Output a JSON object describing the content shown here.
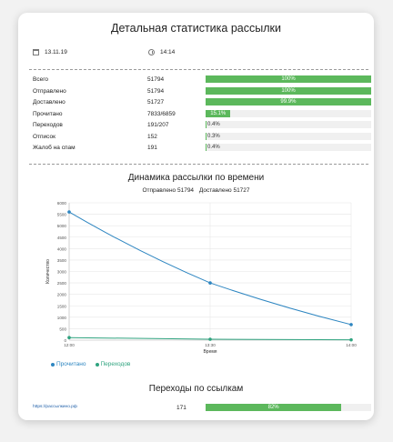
{
  "title": "Детальная статистика рассылки",
  "meta": {
    "date": "13.11.19",
    "date_icon": "calendar-icon",
    "time": "14:14",
    "time_icon": "clock-icon"
  },
  "stats": [
    {
      "label": "Всего",
      "value": "51794",
      "percent": 100,
      "percent_label": "100%"
    },
    {
      "label": "Отправлено",
      "value": "51794",
      "percent": 100,
      "percent_label": "100%"
    },
    {
      "label": "Доставлено",
      "value": "51727",
      "percent": 99.9,
      "percent_label": "99.9%"
    },
    {
      "label": "Прочитано",
      "value": "7833/6859",
      "percent": 15.1,
      "percent_label": "15.1%"
    },
    {
      "label": "Переходов",
      "value": "191/207",
      "percent": 0.4,
      "percent_label": "0.4%"
    },
    {
      "label": "Отписок",
      "value": "152",
      "percent": 0.3,
      "percent_label": "0.3%"
    },
    {
      "label": "Жалоб на спам",
      "value": "191",
      "percent": 0.4,
      "percent_label": "0.4%"
    }
  ],
  "chart_title": "Динамика рассылки по времени",
  "chart_subtitle": {
    "sent": "Отправлено 51794",
    "delivered": "Доставлено 51727"
  },
  "chart_data": {
    "type": "line",
    "x": [
      "12:00",
      "13:30",
      "14:00"
    ],
    "x_values": [
      0,
      1,
      2
    ],
    "series": [
      {
        "name": "Прочитано",
        "color": "#2e86c1",
        "values": [
          5600,
          2500,
          680
        ]
      },
      {
        "name": "Переходов",
        "color": "#2fa37f",
        "values": [
          110,
          40,
          15
        ]
      }
    ],
    "ylabel": "Количество",
    "xlabel": "Время",
    "ylim": [
      0,
      6000
    ],
    "yticks": [
      0,
      500,
      1000,
      1500,
      2000,
      2500,
      3000,
      3500,
      4000,
      4500,
      5000,
      5500,
      6000
    ],
    "grid": true,
    "legend": "bottom-left"
  },
  "links_title": "Переходы по ссылкам",
  "links": [
    {
      "url": "https://рассылкино.рф",
      "count": "171",
      "percent": 82,
      "percent_label": "82%"
    }
  ]
}
